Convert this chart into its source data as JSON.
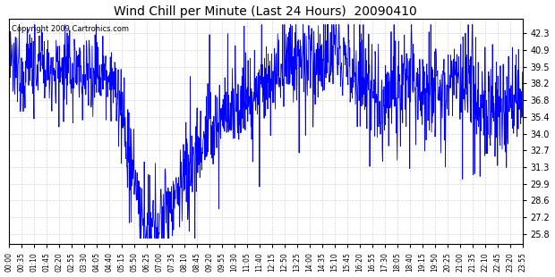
{
  "title": "Wind Chill per Minute (Last 24 Hours)  20090410",
  "copyright_text": "Copyright 2009 Cartronics.com",
  "y_ticks": [
    25.8,
    27.2,
    28.6,
    29.9,
    31.3,
    32.7,
    34.0,
    35.4,
    36.8,
    38.2,
    39.5,
    40.9,
    42.3
  ],
  "y_min": 25.0,
  "y_max": 43.5,
  "line_color": "#0000FF",
  "bg_color": "#FFFFFF",
  "plot_bg_color": "#FFFFFF",
  "grid_color": "#AAAAAA",
  "x_tick_labels": [
    "00:00",
    "00:35",
    "01:10",
    "01:45",
    "02:20",
    "02:55",
    "03:30",
    "04:05",
    "04:40",
    "05:15",
    "05:50",
    "06:25",
    "07:00",
    "07:35",
    "08:10",
    "08:45",
    "09:20",
    "09:55",
    "10:30",
    "11:05",
    "11:40",
    "12:15",
    "12:50",
    "13:25",
    "14:00",
    "14:35",
    "15:10",
    "15:45",
    "16:20",
    "16:55",
    "17:30",
    "18:05",
    "18:40",
    "19:15",
    "19:50",
    "20:25",
    "21:00",
    "21:35",
    "22:10",
    "22:45",
    "23:20",
    "23:55"
  ],
  "n_points": 1440
}
